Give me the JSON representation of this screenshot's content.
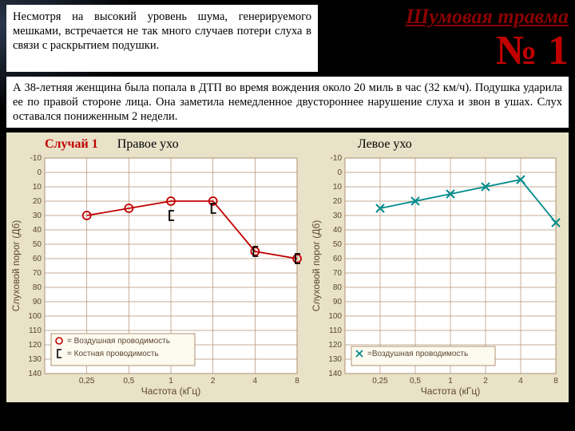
{
  "intro_text": "Несмотря на высокий уровень шума, генерируемого мешками, встречается не так много случаев потери слуха в связи с раскрытием подушки.",
  "main_title": "Шумовая травма",
  "badge": "№ 1",
  "description": "А 38-летняя женщина была попала в ДТП во время вождения около 20 миль в час (32 км/ч). Подушка ударила ее по правой стороне лица. Она заметила немедленное двустороннее нарушение слуха и звон в ушах. Слух оставался пониженным 2 недели.",
  "left_chart": {
    "case_label": "Случай 1",
    "ear_label": "Правое ухо",
    "y_label": "Слуховой порог (Дб)",
    "x_label": "Частота (кГц)",
    "x_ticks": [
      0.25,
      0.5,
      1,
      2,
      4,
      8
    ],
    "x_tick_labels": [
      "0,25",
      "0,5",
      "1",
      "2",
      "4",
      "8"
    ],
    "y_min": -10,
    "y_max": 140,
    "y_step": 10,
    "series_air": {
      "color": "#c00000",
      "marker": "circle",
      "points": [
        [
          0.25,
          30
        ],
        [
          0.5,
          25
        ],
        [
          1,
          20
        ],
        [
          2,
          20
        ],
        [
          4,
          55
        ],
        [
          8,
          60
        ]
      ]
    },
    "series_bone": {
      "color": "#000000",
      "marker": "bracket",
      "points": [
        [
          1,
          30
        ],
        [
          2,
          25
        ],
        [
          4,
          55
        ],
        [
          8,
          60
        ]
      ]
    },
    "legend": [
      {
        "marker": "circle",
        "color": "#c00000",
        "text": "= Воздушная проводимость"
      },
      {
        "marker": "bracket",
        "color": "#000000",
        "text": "= Костная проводимость"
      }
    ],
    "background": "#ffffff",
    "grid_color": "#b09070",
    "axis_label_color": "#5a4530",
    "tick_fontsize": 10,
    "label_fontsize": 12
  },
  "right_chart": {
    "ear_label": "Левое ухо",
    "y_label": "Слуховой порог (Дб)",
    "x_label": "Частота (кГц)",
    "x_ticks": [
      0.25,
      0.5,
      1,
      2,
      4,
      8
    ],
    "x_tick_labels": [
      "0,25",
      "0,5",
      "1",
      "2",
      "4",
      "8"
    ],
    "y_min": -10,
    "y_max": 140,
    "y_step": 10,
    "series_air": {
      "color": "#008b8b",
      "marker": "x",
      "points": [
        [
          0.25,
          25
        ],
        [
          0.5,
          20
        ],
        [
          1,
          15
        ],
        [
          2,
          10
        ],
        [
          4,
          5
        ],
        [
          8,
          35
        ]
      ]
    },
    "legend": [
      {
        "marker": "x",
        "color": "#008b8b",
        "text": "=Воздушная проводимость"
      }
    ],
    "background": "#ffffff",
    "grid_color": "#b09070",
    "axis_label_color": "#5a4530",
    "tick_fontsize": 10,
    "label_fontsize": 12
  }
}
